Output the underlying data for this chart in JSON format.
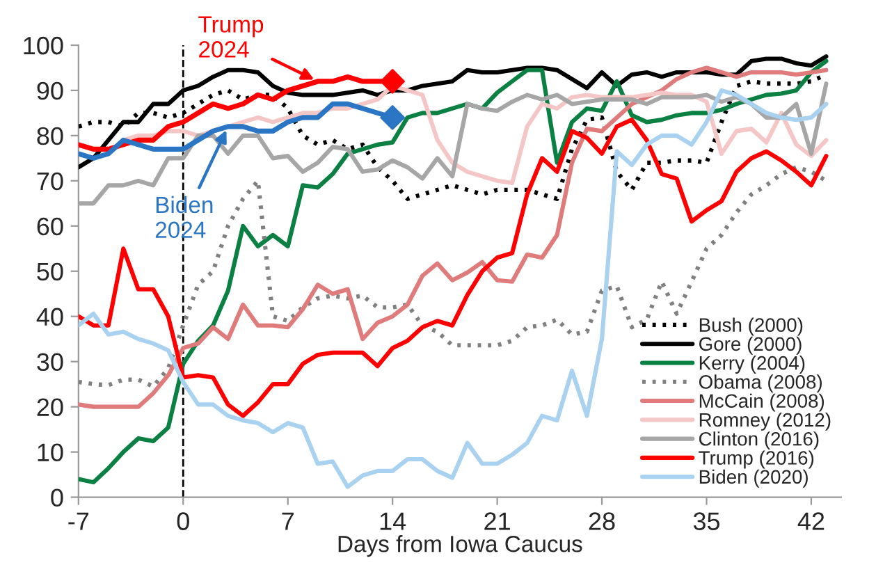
{
  "chart_data": {
    "type": "line",
    "xlabel": "Days from Iowa Caucus",
    "xlim": [
      -7,
      44
    ],
    "xticks": [
      -7,
      0,
      7,
      14,
      21,
      28,
      35,
      42
    ],
    "ylim": [
      0,
      100
    ],
    "yticks": [
      0,
      10,
      20,
      30,
      40,
      50,
      60,
      70,
      80,
      90,
      100
    ],
    "grid": false,
    "legend": "bottom right",
    "line_style": "solid",
    "ref_lines": [
      {
        "axis": "x",
        "value": 0,
        "line_style": "dashed",
        "color": "#000000"
      }
    ],
    "series": [
      {
        "name": "Bush (2000)",
        "color": "#000000",
        "line_style": "dotted",
        "x": [
          -7,
          -6,
          -5,
          -4,
          -3,
          -2,
          -1,
          0,
          1,
          2,
          3,
          4,
          5,
          6,
          7,
          8,
          9,
          10,
          11,
          12,
          13,
          14,
          15,
          16,
          17,
          18,
          19,
          20,
          21,
          22,
          23,
          24,
          25,
          26,
          27,
          28,
          29,
          30,
          31,
          32,
          33,
          34,
          35,
          36,
          37,
          38,
          39,
          40,
          41,
          42,
          43
        ],
        "values": [
          82,
          83,
          83,
          82,
          85,
          85,
          84,
          85,
          87,
          89,
          90,
          88,
          89,
          89,
          86,
          80,
          78,
          79,
          77,
          78,
          73,
          70,
          66,
          67,
          68,
          69,
          68,
          67,
          68,
          68,
          68,
          67,
          66,
          77,
          83.5,
          84,
          72,
          68,
          74,
          74,
          74.5,
          74.5,
          74,
          83,
          91,
          92,
          91.5,
          91.5,
          91.5,
          92,
          93.5
        ]
      },
      {
        "name": "Gore (2000)",
        "color": "#000000",
        "x": [
          -7,
          -6,
          -5,
          -4,
          -3,
          -2,
          -1,
          0,
          1,
          2,
          3,
          4,
          5,
          6,
          7,
          8,
          9,
          10,
          11,
          12,
          13,
          14,
          15,
          16,
          17,
          18,
          19,
          20,
          21,
          22,
          23,
          24,
          25,
          26,
          27,
          28,
          29,
          30,
          31,
          32,
          33,
          34,
          35,
          36,
          37,
          38,
          39,
          40,
          41,
          42,
          43
        ],
        "values": [
          73,
          75,
          79,
          83,
          83,
          87,
          87,
          90,
          91,
          93,
          94.5,
          94.5,
          94,
          91,
          89.5,
          89,
          89,
          89,
          89.5,
          90,
          89,
          90,
          90,
          91,
          91.5,
          92,
          94.5,
          94,
          94,
          94.5,
          95,
          95,
          94.5,
          92.5,
          90.5,
          94,
          91,
          93.5,
          94,
          93,
          94,
          94,
          94,
          93.5,
          93.5,
          96.5,
          97,
          97,
          96,
          95.5,
          97.5
        ]
      },
      {
        "name": "Kerry (2004)",
        "color": "#0b8043",
        "x": [
          -7,
          -6,
          -5,
          -4,
          -3,
          -2,
          -1,
          0,
          1,
          2,
          3,
          4,
          5,
          6,
          7,
          8,
          9,
          10,
          11,
          12,
          13,
          14,
          15,
          16,
          17,
          18,
          19,
          20,
          21,
          22,
          23,
          24,
          25,
          26,
          27,
          28,
          29,
          30,
          31,
          32,
          33,
          34,
          35,
          36,
          37,
          38,
          39,
          40,
          41,
          42,
          43
        ],
        "values": [
          4,
          3.3,
          6.4,
          10,
          13,
          12.4,
          15.4,
          29.5,
          34.6,
          38,
          45.7,
          60,
          55.5,
          58,
          55.5,
          69,
          68.5,
          71.5,
          76,
          77,
          78,
          78.5,
          84,
          85,
          85,
          86,
          87,
          86,
          89.5,
          92,
          94.5,
          94.5,
          74,
          83,
          86,
          85.5,
          92,
          84.5,
          83,
          83.5,
          84.5,
          85,
          85,
          85.7,
          87,
          88,
          89,
          89.3,
          90,
          94,
          96.5
        ]
      },
      {
        "name": "Obama (2008)",
        "color": "#808080",
        "line_style": "dotted",
        "x": [
          -7,
          -6,
          -5,
          -4,
          -3,
          -2,
          -1,
          0,
          1,
          2,
          3,
          4,
          5,
          6,
          7,
          8,
          9,
          10,
          11,
          12,
          13,
          14,
          15,
          16,
          17,
          18,
          19,
          20,
          21,
          22,
          23,
          24,
          25,
          26,
          27,
          28,
          29,
          30,
          31,
          32,
          33,
          34,
          35,
          36,
          37,
          38,
          39,
          40,
          41,
          42,
          43
        ],
        "values": [
          25.5,
          25,
          24.8,
          26,
          26,
          24.5,
          28.5,
          38,
          47,
          50,
          60,
          66,
          70,
          40,
          39,
          42,
          44,
          44.6,
          44,
          44.6,
          42,
          42,
          42.6,
          38,
          36.6,
          33.6,
          33.6,
          33.6,
          33.6,
          34.6,
          37.6,
          38,
          39.3,
          36,
          36.6,
          45.7,
          46.7,
          37.6,
          39.3,
          47.7,
          40.6,
          47.7,
          55,
          58,
          63,
          67,
          69,
          71.5,
          73,
          72,
          70
        ]
      },
      {
        "name": "McCain (2008)",
        "color": "#e07b7b",
        "x": [
          -7,
          -6,
          -5,
          -4,
          -3,
          -2,
          -1,
          0,
          1,
          2,
          3,
          4,
          5,
          6,
          7,
          8,
          9,
          10,
          11,
          12,
          13,
          14,
          15,
          16,
          17,
          18,
          19,
          20,
          21,
          22,
          23,
          24,
          25,
          26,
          27,
          28,
          29,
          30,
          31,
          32,
          33,
          34,
          35,
          36,
          37,
          38,
          39,
          40,
          41,
          42,
          43
        ],
        "values": [
          20.5,
          20,
          20,
          20,
          20,
          23,
          27,
          33,
          34,
          37.6,
          35,
          42.6,
          38,
          38,
          37.6,
          41.6,
          47,
          45,
          46,
          35,
          38.6,
          40,
          42.6,
          49,
          51.7,
          48,
          49.7,
          52,
          48,
          47.7,
          53.7,
          53,
          58,
          74,
          81.5,
          81,
          84,
          87,
          88.5,
          90,
          92.5,
          94,
          95,
          94,
          93,
          94,
          94,
          94,
          93.5,
          94,
          94.5
        ]
      },
      {
        "name": "Romney (2012)",
        "color": "#f4c6c6",
        "x": [
          -4,
          -3,
          -2,
          -1,
          0,
          1,
          2,
          3,
          4,
          5,
          6,
          7,
          8,
          9,
          10,
          11,
          12,
          13,
          14,
          15,
          16,
          17,
          18,
          19,
          20,
          21,
          22,
          23,
          24,
          25,
          26,
          27,
          28,
          29,
          30,
          31,
          32,
          33,
          34,
          35,
          36,
          37,
          38,
          39,
          40,
          41,
          42,
          43
        ],
        "values": [
          79,
          80,
          80,
          81,
          81,
          80,
          81,
          82,
          83,
          84,
          83,
          84,
          85,
          85,
          86,
          86,
          87,
          88,
          91,
          90,
          89,
          79,
          74,
          72,
          71,
          70,
          69.5,
          82,
          87,
          86,
          88.5,
          89,
          88.5,
          88.5,
          88.5,
          89,
          89.5,
          89,
          89,
          87.5,
          76,
          81,
          81.5,
          78.5,
          85,
          78,
          75.5,
          79
        ]
      },
      {
        "name": "Clinton (2016)",
        "color": "#a6a6a6",
        "x": [
          -7,
          -6,
          -5,
          -4,
          -3,
          -2,
          -1,
          0,
          1,
          2,
          3,
          4,
          5,
          6,
          7,
          8,
          9,
          10,
          11,
          12,
          13,
          14,
          15,
          16,
          17,
          18,
          19,
          20,
          21,
          22,
          23,
          24,
          25,
          26,
          27,
          28,
          29,
          30,
          31,
          32,
          33,
          34,
          35,
          36,
          37,
          38,
          39,
          40,
          41,
          42,
          43
        ],
        "values": [
          65,
          65,
          69,
          69,
          70,
          69,
          75,
          75,
          80,
          80,
          76,
          80,
          80,
          75,
          75.5,
          72,
          74,
          77.5,
          77,
          72,
          72.5,
          74.5,
          73,
          70.5,
          75,
          71,
          87,
          86,
          85.5,
          87.5,
          89,
          88,
          89,
          87,
          87.5,
          88,
          88,
          88,
          87,
          88.5,
          88.5,
          88.5,
          89,
          87.5,
          88.5,
          87,
          84,
          84,
          87,
          76,
          91.5
        ]
      },
      {
        "name": "Trump (2016)",
        "color": "#ff0000",
        "x": [
          -7,
          -6,
          -5,
          -4,
          -3,
          -2,
          -1,
          0,
          1,
          2,
          3,
          4,
          5,
          6,
          7,
          8,
          9,
          10,
          11,
          12,
          13,
          14,
          15,
          16,
          17,
          18,
          19,
          20,
          21,
          22,
          23,
          24,
          25,
          26,
          27,
          28,
          29,
          30,
          31,
          32,
          33,
          34,
          35,
          36,
          37,
          38,
          39,
          40,
          41,
          42,
          43
        ],
        "values": [
          40,
          38,
          38,
          55,
          46,
          46,
          40,
          26.5,
          27,
          26.5,
          20.5,
          18,
          21,
          25,
          25,
          29.5,
          31.5,
          32,
          32,
          32,
          29,
          33,
          34.6,
          37.6,
          39,
          38,
          44.7,
          50,
          53,
          54,
          67,
          75,
          72,
          81,
          79.5,
          76,
          82,
          83.5,
          79,
          71.5,
          70.5,
          61,
          63.5,
          65.5,
          72,
          75,
          76.5,
          74.5,
          72,
          69,
          75.5
        ]
      },
      {
        "name": "Biden (2020)",
        "color": "#a9d1f0",
        "x": [
          -7,
          -6,
          -5,
          -4,
          -3,
          -2,
          -1,
          0,
          1,
          2,
          3,
          4,
          5,
          6,
          7,
          8,
          9,
          10,
          11,
          12,
          13,
          14,
          15,
          16,
          17,
          18,
          19,
          20,
          21,
          22,
          23,
          24,
          25,
          26,
          27,
          28,
          29,
          30,
          31,
          32,
          33,
          34,
          35,
          36,
          37,
          38,
          39,
          40,
          41,
          42,
          43
        ],
        "values": [
          38,
          40.6,
          36,
          36.6,
          35,
          34,
          32.5,
          25.5,
          20.5,
          20.5,
          18,
          17,
          16.4,
          14.4,
          16.4,
          15.4,
          7.4,
          7.9,
          2.3,
          4.8,
          5.8,
          5.8,
          8.4,
          8.4,
          5.8,
          4.3,
          12,
          7.4,
          7.4,
          9.4,
          12,
          18,
          17,
          28,
          18,
          35,
          76.5,
          73.5,
          78,
          80,
          80,
          78,
          83,
          90,
          89,
          87,
          85,
          84,
          83.5,
          84,
          87
        ]
      },
      {
        "name": "Trump 2024",
        "color": "#ff0000",
        "x": [
          -7,
          -6,
          -5,
          -4,
          -3,
          -2,
          -1,
          0,
          1,
          2,
          3,
          4,
          5,
          6,
          7,
          8,
          9,
          10,
          11,
          12,
          13,
          14
        ],
        "values": [
          78,
          77,
          77,
          78,
          79,
          79,
          82,
          83,
          85,
          87,
          86,
          87,
          89,
          88,
          90,
          91,
          92,
          92,
          93,
          92,
          92,
          92
        ]
      },
      {
        "name": "Biden 2024",
        "color": "#2a75c4",
        "x": [
          -7,
          -6,
          -5,
          -4,
          -3,
          -2,
          -1,
          0,
          1,
          2,
          3,
          4,
          5,
          6,
          7,
          8,
          9,
          10,
          11,
          12,
          13,
          14
        ],
        "values": [
          76,
          75,
          76,
          79,
          78,
          77,
          77,
          77,
          79,
          81,
          82,
          82,
          81,
          81,
          83,
          84,
          84,
          87,
          87,
          86,
          85,
          84
        ]
      }
    ]
  }
}
